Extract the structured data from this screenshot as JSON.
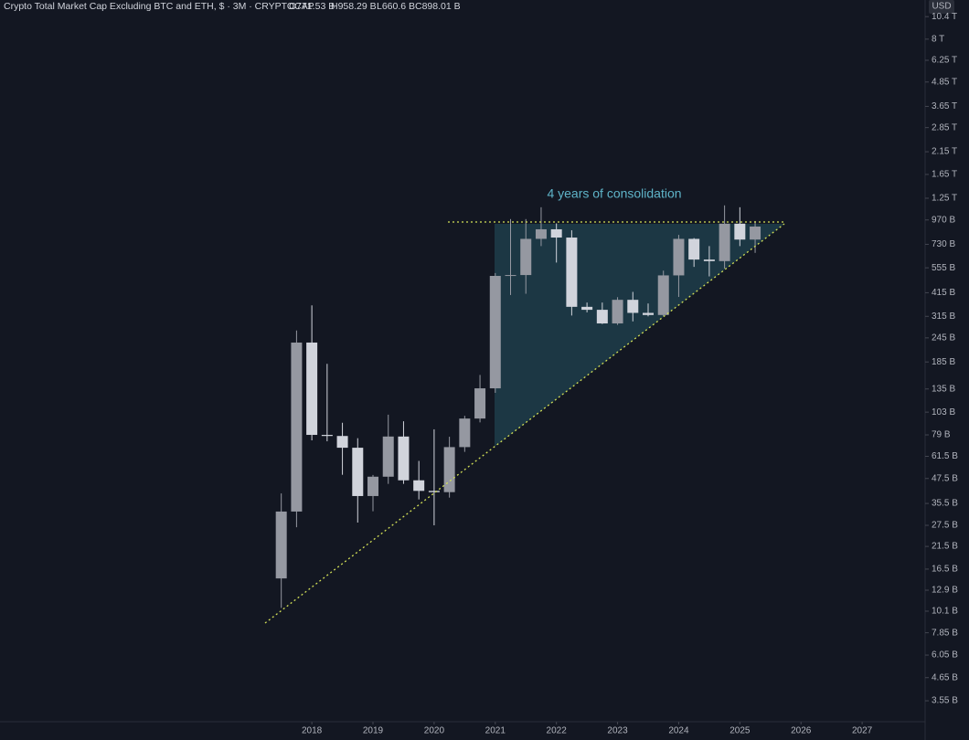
{
  "chart_data": {
    "type": "candlestick",
    "title": "Crypto Total Market Cap Excluding BTC and ETH, $ · 3M · CRYPTOCAP",
    "ohlc_labels": [
      "O771.53 B",
      "H958.29 B",
      "L660.6 B",
      "C898.01 B"
    ],
    "currency": "USD",
    "annotation": "4 years of consolidation",
    "x": [
      2017.5,
      2017.75,
      2018.0,
      2018.25,
      2018.5,
      2018.75,
      2019.0,
      2019.25,
      2019.5,
      2019.75,
      2020.0,
      2020.25,
      2020.5,
      2020.75,
      2021.0,
      2021.25,
      2021.5,
      2021.75,
      2022.0,
      2022.25,
      2022.5,
      2022.75,
      2023.0,
      2023.25,
      2023.5,
      2023.75,
      2024.0,
      2024.25,
      2024.5,
      2024.75,
      2025.0,
      2025.25
    ],
    "open": [
      14.8,
      32.3,
      232,
      79,
      78,
      68,
      38.7,
      48.5,
      77.5,
      46.5,
      41.1,
      40.5,
      68.5,
      95.6,
      136,
      505,
      510,
      778,
      870,
      790,
      352,
      340,
      290,
      382,
      328,
      320,
      508,
      778,
      611,
      600,
      929,
      771.53
    ],
    "high": [
      39.9,
      267,
      358,
      181,
      91,
      76,
      49.5,
      100,
      92.6,
      58.3,
      84.3,
      77.3,
      98.7,
      159,
      522,
      980,
      980,
      1125,
      932,
      860,
      370,
      370,
      394,
      419,
      366,
      537,
      815,
      785,
      715,
      1150,
      1125,
      958.29
    ],
    "low": [
      10.5,
      26.9,
      74.1,
      73.3,
      49.6,
      28.4,
      32.4,
      44.6,
      44.6,
      37.2,
      27.5,
      38,
      64.8,
      91.4,
      129,
      404,
      410,
      715,
      590,
      318,
      330,
      288,
      285,
      297,
      315,
      316,
      395,
      561,
      502,
      550,
      715,
      660.6
    ],
    "close": [
      32.3,
      232,
      79,
      78,
      68,
      38.7,
      48.5,
      77.5,
      46.5,
      41.1,
      40.5,
      68.5,
      95.6,
      136,
      505,
      510,
      778,
      870,
      790,
      352,
      340,
      290,
      382,
      328,
      320,
      508,
      778,
      611,
      600,
      929,
      771.53,
      898.01
    ],
    "up_color": "#9598a1",
    "down_color": "#d1d4dc",
    "xlim": [
      2012.9,
      2028.03
    ],
    "xticks": [
      2018,
      2019,
      2020,
      2021,
      2022,
      2023,
      2024,
      2025,
      2026,
      2027
    ],
    "ylim": [
      2.78,
      12630
    ],
    "log_scale": true,
    "yticks": [
      {
        "value": 10400,
        "label": "10.4 T"
      },
      {
        "value": 8000,
        "label": "8 T"
      },
      {
        "value": 6250,
        "label": "6.25 T"
      },
      {
        "value": 4850,
        "label": "4.85 T"
      },
      {
        "value": 3650,
        "label": "3.65 T"
      },
      {
        "value": 2850,
        "label": "2.85 T"
      },
      {
        "value": 2150,
        "label": "2.15 T"
      },
      {
        "value": 1650,
        "label": "1.65 T"
      },
      {
        "value": 1250,
        "label": "1.25 T"
      },
      {
        "value": 970,
        "label": "970 B"
      },
      {
        "value": 730,
        "label": "730 B"
      },
      {
        "value": 555,
        "label": "555 B"
      },
      {
        "value": 415,
        "label": "415 B"
      },
      {
        "value": 315,
        "label": "315 B"
      },
      {
        "value": 245,
        "label": "245 B"
      },
      {
        "value": 185,
        "label": "185 B"
      },
      {
        "value": 135,
        "label": "135 B"
      },
      {
        "value": 103,
        "label": "103 B"
      },
      {
        "value": 79,
        "label": "79 B"
      },
      {
        "value": 61.5,
        "label": "61.5 B"
      },
      {
        "value": 47.5,
        "label": "47.5 B"
      },
      {
        "value": 35.5,
        "label": "35.5 B"
      },
      {
        "value": 27.5,
        "label": "27.5 B"
      },
      {
        "value": 21.5,
        "label": "21.5 B"
      },
      {
        "value": 16.5,
        "label": "16.5 B"
      },
      {
        "value": 12.9,
        "label": "12.9 B"
      },
      {
        "value": 10.1,
        "label": "10.1 B"
      },
      {
        "value": 7.85,
        "label": "7.85 B"
      },
      {
        "value": 6.05,
        "label": "6.05 B"
      },
      {
        "value": 4.65,
        "label": "4.65 B"
      },
      {
        "value": 3.55,
        "label": "3.55 B"
      }
    ]
  }
}
